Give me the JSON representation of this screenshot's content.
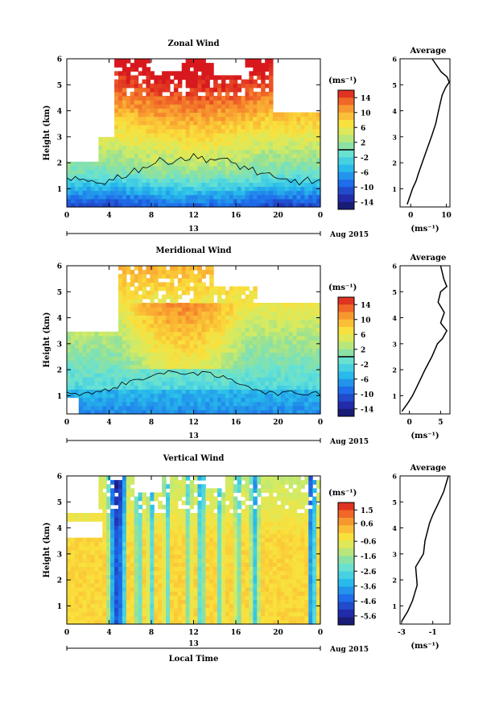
{
  "figure": {
    "xlabel_bottom": "Local Time",
    "date_label": "Aug 2015",
    "date_tick": "13"
  },
  "chart_data": [
    {
      "type": "heatmap",
      "title": "Zonal Wind",
      "ylabel": "Height (km)",
      "xlabel": "",
      "xlim": [
        0,
        24
      ],
      "xticks": [
        "0",
        "4",
        "8",
        "12",
        "16",
        "20",
        "0"
      ],
      "ylim": [
        0.3,
        6
      ],
      "yticks": [
        "1",
        "2",
        "3",
        "4",
        "5",
        "6"
      ],
      "colorbar_unit": "(ms⁻¹)",
      "colorbar_ticks": [
        "14",
        "10",
        "6",
        "2",
        "-2",
        "-6",
        "-10",
        "-14"
      ],
      "colorbar_range": [
        -16,
        16
      ],
      "zero_contour": true,
      "profile_title": "Average",
      "profile_xlabel": "(ms⁻¹)",
      "profile_xticks": [
        "0",
        "10"
      ],
      "profile_xlim": [
        -3,
        11
      ],
      "profile": {
        "height": [
          0.4,
          0.6,
          0.8,
          1.0,
          1.3,
          1.6,
          2.0,
          2.5,
          3.0,
          3.5,
          4.0,
          4.3,
          4.6,
          4.9,
          5.1,
          5.3,
          5.5,
          5.8,
          6.0
        ],
        "value": [
          -1,
          -0.5,
          0,
          0.5,
          1.5,
          2.2,
          3.2,
          4.5,
          5.8,
          7,
          7.8,
          8.3,
          8.8,
          9.8,
          10.8,
          10.2,
          8.5,
          7,
          6
        ]
      }
    },
    {
      "type": "heatmap",
      "title": "Meridional Wind",
      "ylabel": "Height (km)",
      "xlabel": "",
      "xlim": [
        0,
        24
      ],
      "xticks": [
        "0",
        "4",
        "8",
        "12",
        "16",
        "20",
        "0"
      ],
      "ylim": [
        0.3,
        6
      ],
      "yticks": [
        "1",
        "2",
        "3",
        "4",
        "5",
        "6"
      ],
      "colorbar_unit": "(ms⁻¹)",
      "colorbar_ticks": [
        "14",
        "10",
        "6",
        "2",
        "-2",
        "-6",
        "-10",
        "-14"
      ],
      "colorbar_range": [
        -16,
        16
      ],
      "zero_contour": true,
      "profile_title": "Average",
      "profile_xlabel": "(ms⁻¹)",
      "profile_xticks": [
        "0",
        "5"
      ],
      "profile_xlim": [
        -1.5,
        6.5
      ],
      "profile": {
        "height": [
          0.4,
          0.7,
          1.0,
          1.5,
          2.0,
          2.5,
          3.0,
          3.2,
          3.5,
          3.8,
          4.2,
          4.6,
          5.0,
          5.2,
          5.5,
          6.0
        ],
        "value": [
          -1.2,
          -0.3,
          0.5,
          1.5,
          2.5,
          3.6,
          4.5,
          5.3,
          6.0,
          5.0,
          5.6,
          4.6,
          5.0,
          6.0,
          5.5,
          5.0
        ]
      }
    },
    {
      "type": "heatmap",
      "title": "Vertical Wind",
      "ylabel": "Height (km)",
      "xlabel": "Local Time",
      "xlim": [
        0,
        24
      ],
      "xticks": [
        "0",
        "4",
        "8",
        "12",
        "16",
        "20",
        "0"
      ],
      "ylim": [
        0.3,
        6
      ],
      "yticks": [
        "1",
        "2",
        "3",
        "4",
        "5",
        "6"
      ],
      "colorbar_unit": "(ms⁻¹)",
      "colorbar_ticks": [
        "1.5",
        "0.6",
        "-0.6",
        "-1.6",
        "-2.6",
        "-3.6",
        "-4.6",
        "-5.6"
      ],
      "colorbar_range": [
        -6.2,
        2.0
      ],
      "zero_contour": false,
      "profile_title": "Average",
      "profile_xlabel": "(ms⁻¹)",
      "profile_xticks": [
        "-3",
        "-1"
      ],
      "profile_xlim": [
        -3.1,
        0.1
      ],
      "profile": {
        "height": [
          0.4,
          0.8,
          1.2,
          1.8,
          2.5,
          3.0,
          3.5,
          4.2,
          4.5,
          5.0,
          5.4,
          5.8,
          6.0
        ],
        "value": [
          -3.0,
          -2.6,
          -2.3,
          -2.0,
          -2.1,
          -1.6,
          -1.5,
          -1.2,
          -1.0,
          -0.6,
          -0.3,
          -0.1,
          0.0
        ]
      }
    }
  ]
}
